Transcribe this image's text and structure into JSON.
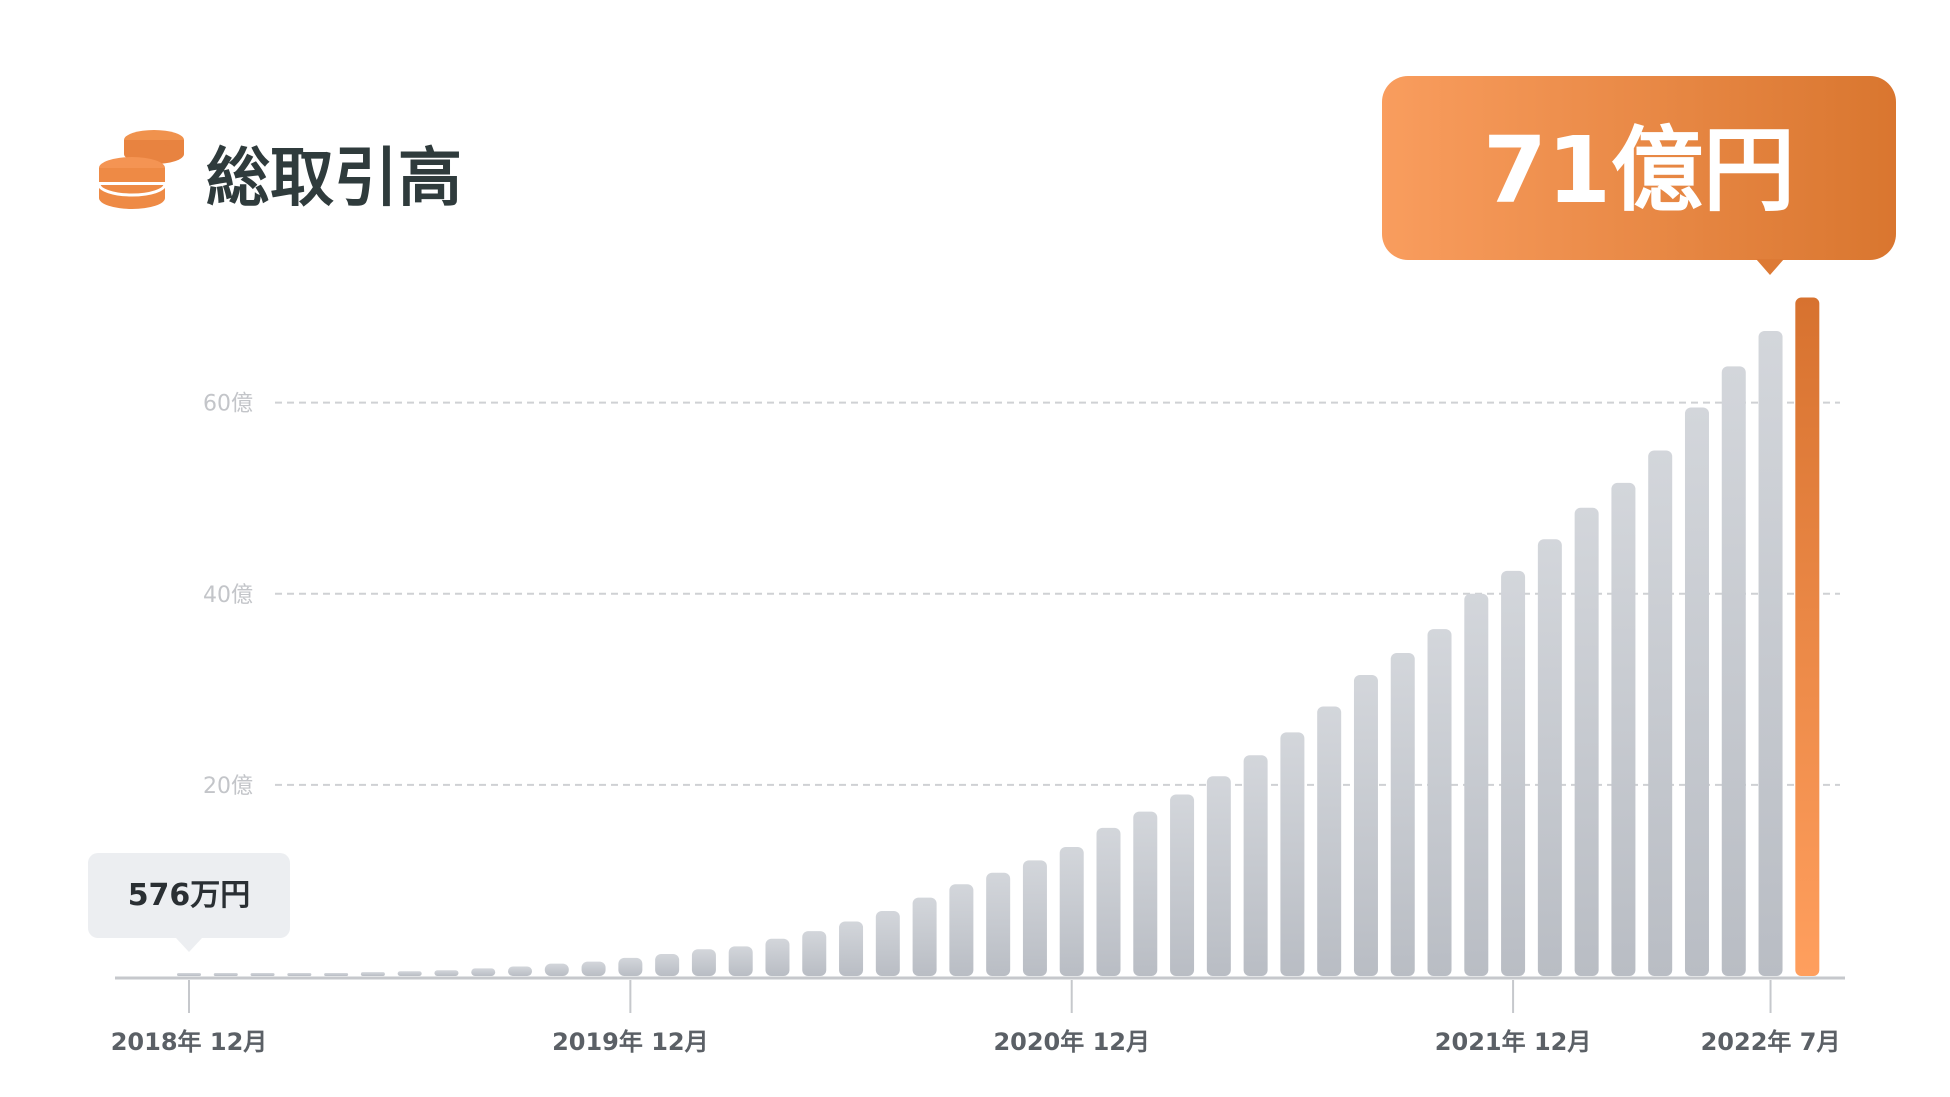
{
  "header": {
    "title": "総取引高",
    "icon": "coins-icon"
  },
  "colors": {
    "accent_light": "#f7955a",
    "accent_dark": "#d7722f",
    "bar_top": "#d3d6db",
    "bar_bottom": "#b8bcc3",
    "title": "#2f3b3c",
    "grid": "#cfd1d4",
    "axis": "#c6c8cc"
  },
  "chart_data": {
    "type": "bar",
    "title": "総取引高",
    "ylabel": "",
    "xlabel": "",
    "ylim": [
      0,
      72
    ],
    "unit": "億円",
    "yticks": [
      {
        "value": 20,
        "label": "20億"
      },
      {
        "value": 40,
        "label": "40億"
      },
      {
        "value": 60,
        "label": "60億"
      }
    ],
    "xticks": [
      {
        "index": 0,
        "label": "2018年 12月"
      },
      {
        "index": 12,
        "label": "2019年 12月"
      },
      {
        "index": 24,
        "label": "2020年 12月"
      },
      {
        "index": 36,
        "label": "2021年 12月"
      },
      {
        "index": 43,
        "label": "2022年 7月"
      }
    ],
    "values": [
      0.0576,
      0.1,
      0.15,
      0.2,
      0.3,
      0.4,
      0.5,
      0.6,
      0.8,
      1.0,
      1.3,
      1.5,
      1.9,
      2.3,
      2.8,
      3.1,
      3.9,
      4.7,
      5.7,
      6.8,
      8.2,
      9.6,
      10.8,
      12.1,
      13.5,
      15.5,
      17.2,
      19.0,
      20.9,
      23.1,
      25.5,
      28.2,
      31.5,
      33.8,
      36.3,
      40.0,
      42.4,
      45.7,
      49.0,
      51.6,
      55.0,
      59.5,
      63.8,
      67.5,
      71.0
    ],
    "grid": true,
    "annotations": [
      {
        "index": 0,
        "label": "576万円"
      },
      {
        "index": 44,
        "label": "71億円"
      }
    ]
  }
}
